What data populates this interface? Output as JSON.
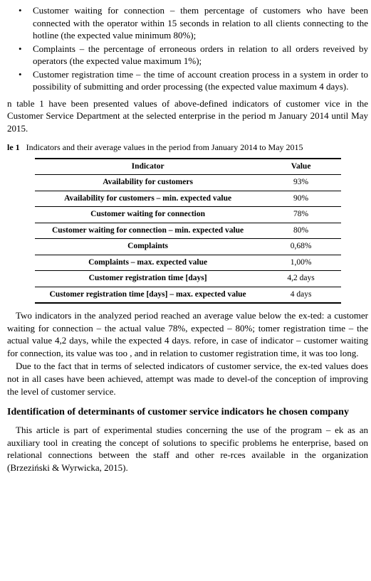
{
  "bullets": [
    "Customer waiting for connection – them percentage of customers who have been connected with the operator within 15 seconds in relation to all clients connecting to the hotline (the expected value minimum 80%);",
    "Complaints – the percentage of erroneous orders in relation to all orders reveived by operators (the expected value maximum 1%);",
    "Customer registration time – the time of account creation process in a system in order to possibility of submitting and order processing (the expected value maximum 4 days)."
  ],
  "para_intro": "n table 1 have been presented values of above-defined indicators of customer vice in the Customer Service Department at the selected enterprise in the period m January 2014 until May 2015.",
  "table_caption_label": "le 1",
  "table_caption_text": "Indicators and their average values in the period from January 2014 to May 2015",
  "table": {
    "headers": [
      "Indicator",
      "Value"
    ],
    "rows": [
      [
        "Availability for customers",
        "93%"
      ],
      [
        "Availability for customers – min. expected value",
        "90%"
      ],
      [
        "Customer waiting for connection",
        "78%"
      ],
      [
        "Customer waiting for  connection – min. expected value",
        "80%"
      ],
      [
        "Complaints",
        "0,68%"
      ],
      [
        "Complaints – max. expected value",
        "1,00%"
      ],
      [
        "Customer registration time [days]",
        "4,2 days"
      ],
      [
        "Customer registration time [days] – max. expected value",
        "4 days"
      ]
    ]
  },
  "para_after_1": "Two indicators in the analyzed period reached an average value below the ex-ted: a customer waiting for connection – the actual value 78%, expected – 80%; tomer registration time – the actual value 4,2 days, while the expected 4 days. refore, in case of indicator – customer waiting for connection, its value was too , and in relation to customer registration time, it was too long.",
  "para_after_2": "Due to the fact that in terms of selected indicators of customer service, the ex-ted values does not in all cases have been achieved, attempt was made to devel-of the conception of improving the level of customer service.",
  "section_heading": "Identification of determinants of customer service indicators he chosen company",
  "para_last": "This article is part of experimental studies concerning the use of the program – ek as an auxiliary tool in creating the concept of solutions to specific problems he enterprise, based on relational connections between the staff and other re-rces available in the organization (Brzeziński & Wyrwicka, 2015)."
}
